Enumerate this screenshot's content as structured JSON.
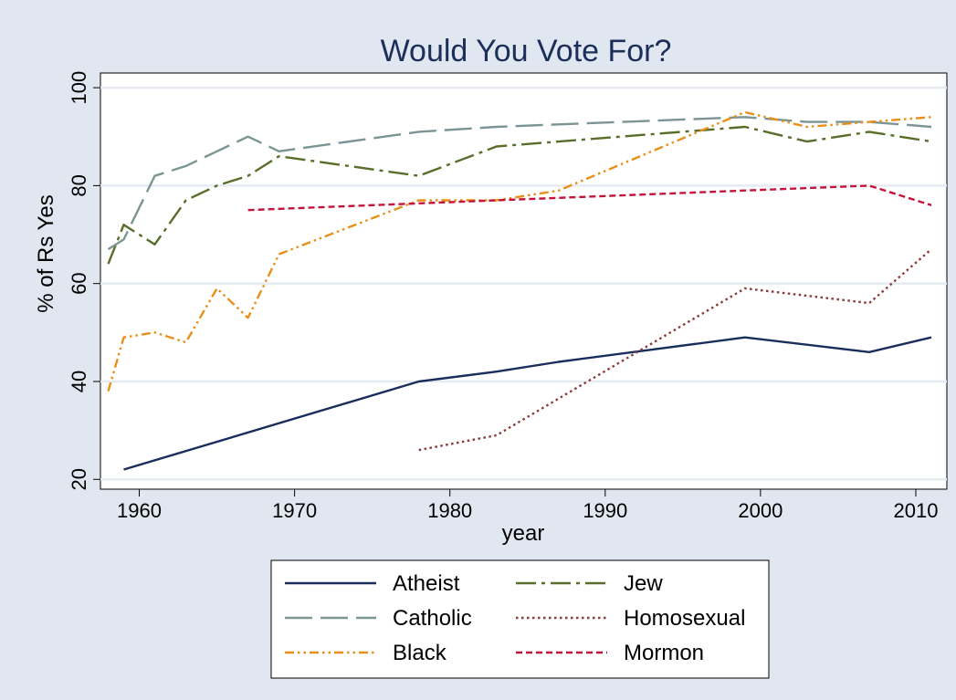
{
  "chart_data": {
    "type": "line",
    "title": "Would You Vote For?",
    "xlabel": "year",
    "ylabel": "% of Rs Yes",
    "xlim": [
      1957.5,
      2012
    ],
    "ylim": [
      18,
      103
    ],
    "xticks": [
      1960,
      1970,
      1980,
      1990,
      2000,
      2010
    ],
    "yticks": [
      20,
      40,
      60,
      80,
      100
    ],
    "grid": true,
    "legend_position": "bottom",
    "plot_background": "#ffffff",
    "page_background": "#e1e7f0",
    "series": [
      {
        "name": "Atheist",
        "color": "#1a2e5c",
        "dash": "solid",
        "x": [
          1959,
          1978,
          1983,
          1987,
          1999,
          2007,
          2011
        ],
        "y": [
          22,
          40,
          42,
          44,
          49,
          46,
          49
        ]
      },
      {
        "name": "Jew",
        "color": "#5a6e2b",
        "dash": "dashdot",
        "x": [
          1958,
          1959,
          1961,
          1963,
          1965,
          1967,
          1969,
          1978,
          1983,
          1987,
          1999,
          2003,
          2007,
          2011
        ],
        "y": [
          64,
          72,
          68,
          77,
          80,
          82,
          86,
          82,
          88,
          89,
          92,
          89,
          91,
          89
        ]
      },
      {
        "name": "Catholic",
        "color": "#7b9494",
        "dash": "longdash",
        "x": [
          1958,
          1959,
          1961,
          1963,
          1965,
          1967,
          1969,
          1978,
          1983,
          1987,
          1999,
          2003,
          2007,
          2011
        ],
        "y": [
          67,
          69,
          82,
          84,
          87,
          90,
          87,
          91,
          92,
          92.5,
          94,
          93,
          93,
          92
        ]
      },
      {
        "name": "Homosexual",
        "color": "#8a3a38",
        "dash": "dot",
        "x": [
          1978,
          1983,
          1999,
          2007,
          2011
        ],
        "y": [
          26,
          29,
          59,
          56,
          67
        ]
      },
      {
        "name": "Black",
        "color": "#e8901a",
        "dash": "dashdotdot",
        "x": [
          1958,
          1959,
          1961,
          1963,
          1965,
          1967,
          1969,
          1978,
          1983,
          1987,
          1999,
          2003,
          2007,
          2011
        ],
        "y": [
          38,
          49,
          50,
          48,
          59,
          53,
          66,
          77,
          77,
          79,
          95,
          92,
          93,
          94
        ]
      },
      {
        "name": "Mormon",
        "color": "#c4143c",
        "dash": "shortdash",
        "x": [
          1967,
          2007,
          2011
        ],
        "y": [
          75,
          80,
          76
        ]
      }
    ]
  }
}
